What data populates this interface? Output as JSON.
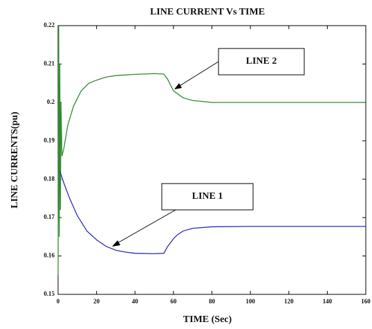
{
  "chart_data": {
    "type": "line",
    "title": "LINE CURRENT Vs TIME",
    "xlabel": "TIME (Sec)",
    "ylabel": "LINE CURRENTS(pu)",
    "xlim": [
      0,
      160
    ],
    "xticks": [
      0,
      20,
      40,
      60,
      80,
      100,
      120,
      140,
      160
    ],
    "ylim": [
      0.15,
      0.22
    ],
    "yticks": [
      0.15,
      0.16,
      0.17,
      0.18,
      0.19,
      0.2,
      0.21,
      0.22
    ],
    "series": [
      {
        "name": "LINE 2",
        "color": "#2f8a2f",
        "x": [
          0,
          0.3,
          0.6,
          0.9,
          1.2,
          1.5,
          2,
          3,
          5,
          8,
          12,
          16,
          20,
          25,
          30,
          40,
          50,
          55,
          57,
          60,
          65,
          70,
          80,
          100,
          120,
          140,
          160
        ],
        "values": [
          0.155,
          0.22,
          0.165,
          0.21,
          0.172,
          0.2,
          0.186,
          0.188,
          0.194,
          0.199,
          0.203,
          0.205,
          0.2058,
          0.2066,
          0.207,
          0.2073,
          0.2075,
          0.2074,
          0.206,
          0.203,
          0.2012,
          0.2005,
          0.2,
          0.2,
          0.2,
          0.2,
          0.2
        ]
      },
      {
        "name": "LINE 1",
        "color": "#2b2bb8",
        "x": [
          1,
          3,
          6,
          10,
          15,
          20,
          25,
          30,
          35,
          40,
          50,
          55,
          57,
          60,
          62,
          65,
          70,
          80,
          100,
          120,
          140,
          160
        ],
        "values": [
          0.182,
          0.179,
          0.175,
          0.1705,
          0.1665,
          0.1642,
          0.1625,
          0.1615,
          0.161,
          0.1607,
          0.1606,
          0.1607,
          0.1625,
          0.1645,
          0.1655,
          0.1665,
          0.1672,
          0.1676,
          0.1677,
          0.1677,
          0.1677,
          0.1677
        ]
      }
    ]
  }
}
